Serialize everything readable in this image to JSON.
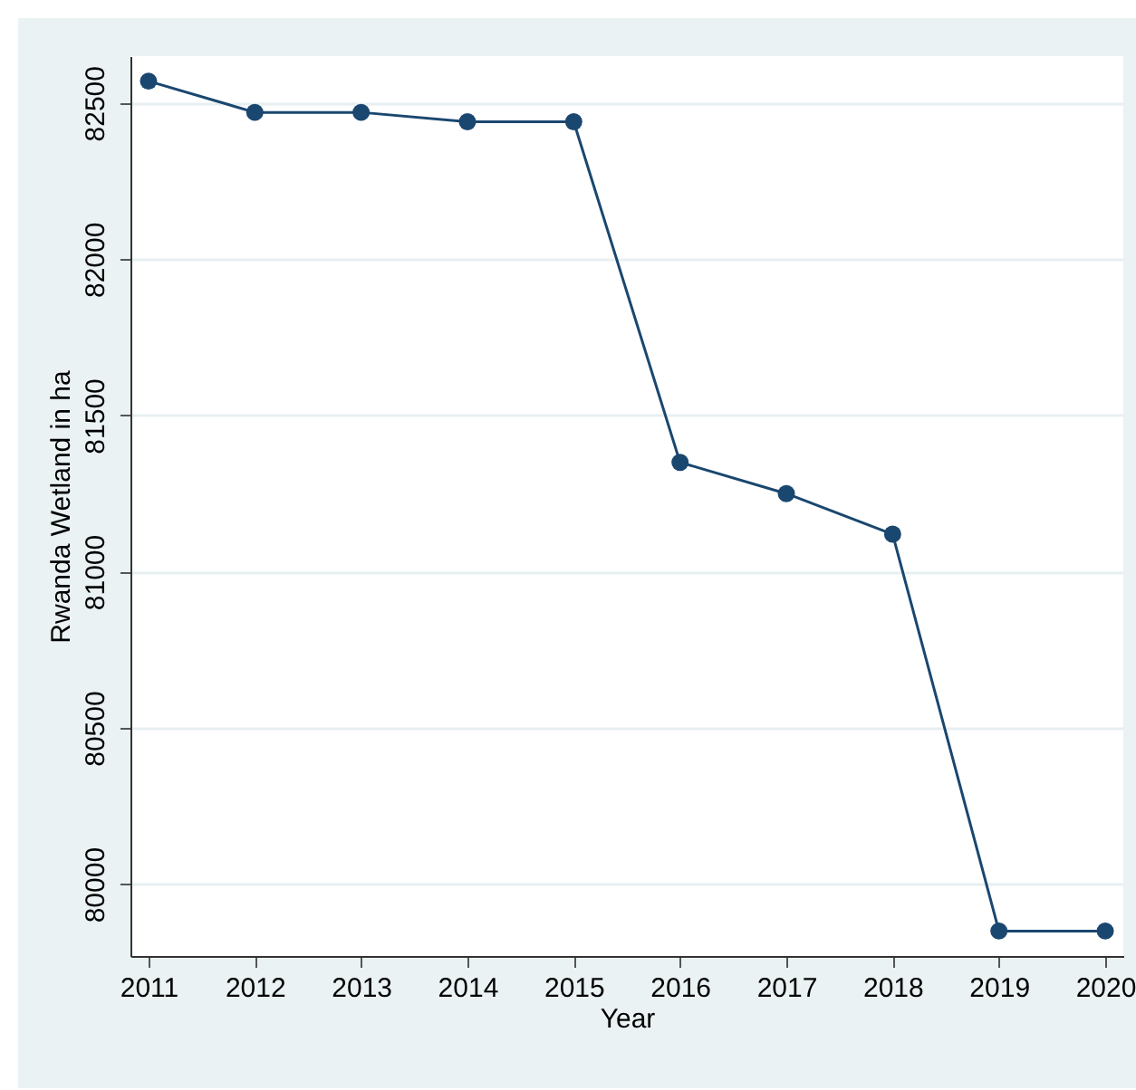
{
  "chart_data": {
    "type": "line",
    "xlabel": "Year",
    "ylabel": "Rwanda Wetland in ha",
    "x": [
      2011,
      2012,
      2013,
      2014,
      2015,
      2016,
      2017,
      2018,
      2019,
      2020
    ],
    "series": [
      {
        "color": "#1a476f",
        "values": [
          82570,
          82470,
          82470,
          82440,
          82440,
          81350,
          81250,
          81120,
          79850,
          79850
        ]
      }
    ],
    "xlim": [
      2010.83,
      2020.17
    ],
    "xticks": [
      2011,
      2012,
      2013,
      2014,
      2015,
      2016,
      2017,
      2018,
      2019,
      2020
    ],
    "ylim": [
      79770,
      82650
    ],
    "yticks": [
      80000,
      80500,
      81000,
      81500,
      82000,
      82500
    ],
    "grid": "y",
    "marker": "circle",
    "line_style": "solid"
  }
}
